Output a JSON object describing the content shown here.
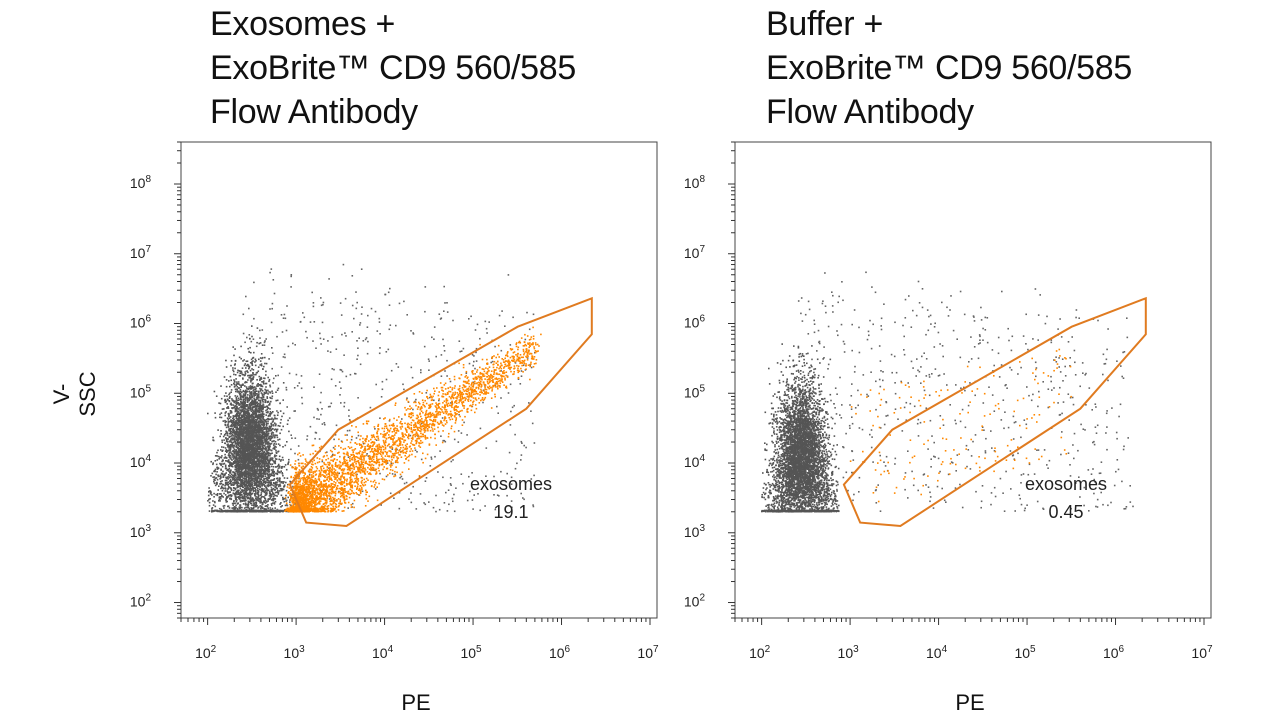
{
  "chart_data": [
    {
      "type": "scatter",
      "title": [
        "Exosomes +",
        "ExoBrite™ CD9 560/585",
        "Flow Antibody"
      ],
      "xlabel": "PE",
      "ylabel": "V-SSC",
      "x_scale": "log",
      "y_scale": "log",
      "xlim": [
        50,
        12000000
      ],
      "ylim": [
        60,
        400000000
      ],
      "x_ticks": [
        100,
        1000,
        10000,
        100000,
        1000000,
        10000000
      ],
      "y_ticks": [
        100,
        1000,
        10000,
        100000,
        1000000,
        10000000,
        100000000
      ],
      "x_tick_exponents": [
        "2",
        "3",
        "4",
        "5",
        "6",
        "7"
      ],
      "y_tick_exponents": [
        "2",
        "3",
        "4",
        "5",
        "6",
        "7",
        "8"
      ],
      "gate": {
        "name": "exosomes",
        "value": "19.1",
        "color": "#e07b20",
        "vertices": [
          [
            850,
            4900
          ],
          [
            1300,
            1400
          ],
          [
            3700,
            1250
          ],
          [
            400000,
            60000
          ],
          [
            2200000,
            700000
          ],
          [
            2200000,
            2300000
          ],
          [
            320000,
            900000
          ],
          [
            3000,
            30000
          ]
        ]
      },
      "populations": [
        {
          "name": "background-events",
          "color": "#555555",
          "x_range": [
            100,
            900
          ],
          "y_range": [
            2000,
            1000000
          ],
          "peak": [
            300,
            14000
          ],
          "count": "dense"
        },
        {
          "name": "gated-exosomes",
          "color": "#ff8800",
          "x_range": [
            1000,
            500000
          ],
          "y_range": [
            2000,
            300000
          ],
          "trend": "diagonal",
          "count": "dense"
        }
      ]
    },
    {
      "type": "scatter",
      "title": [
        "Buffer +",
        "ExoBrite™ CD9 560/585",
        "Flow Antibody"
      ],
      "xlabel": "PE",
      "ylabel": "V-SSC",
      "x_scale": "log",
      "y_scale": "log",
      "xlim": [
        50,
        12000000
      ],
      "ylim": [
        60,
        400000000
      ],
      "x_ticks": [
        100,
        1000,
        10000,
        100000,
        1000000,
        10000000
      ],
      "y_ticks": [
        100,
        1000,
        10000,
        100000,
        1000000,
        10000000,
        100000000
      ],
      "x_tick_exponents": [
        "2",
        "3",
        "4",
        "5",
        "6",
        "7"
      ],
      "y_tick_exponents": [
        "2",
        "3",
        "4",
        "5",
        "6",
        "7",
        "8"
      ],
      "gate": {
        "name": "exosomes",
        "value": "0.45",
        "color": "#e07b20",
        "vertices": [
          [
            850,
            4900
          ],
          [
            1300,
            1400
          ],
          [
            3700,
            1250
          ],
          [
            400000,
            60000
          ],
          [
            2200000,
            700000
          ],
          [
            2200000,
            2300000
          ],
          [
            320000,
            900000
          ],
          [
            3000,
            30000
          ]
        ]
      },
      "populations": [
        {
          "name": "background-events",
          "color": "#555555",
          "x_range": [
            100,
            600
          ],
          "y_range": [
            2000,
            700000
          ],
          "peak": [
            280,
            10000
          ],
          "count": "dense"
        },
        {
          "name": "gated-exosomes",
          "color": "#ff8800",
          "x_range": [
            1000,
            500000
          ],
          "y_range": [
            1500,
            200000
          ],
          "trend": "sparse",
          "count": "sparse"
        }
      ]
    }
  ]
}
